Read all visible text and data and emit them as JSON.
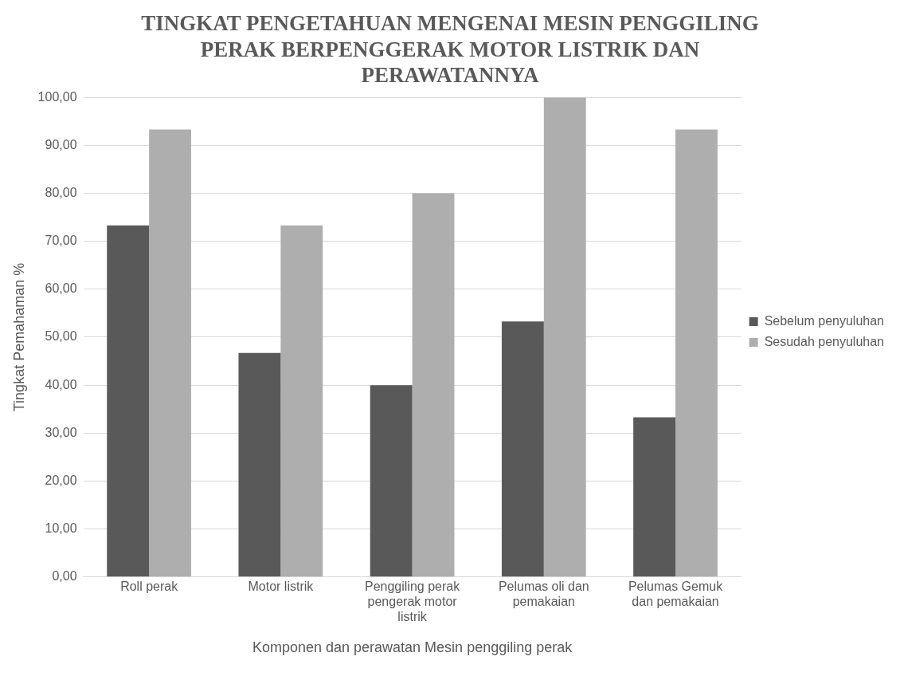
{
  "chart_data": {
    "type": "bar",
    "title": "TINGKAT PENGETAHUAN MENGENAI MESIN PENGGILING PERAK BERPENGGERAK MOTOR LISTRIK DAN PERAWATANNYA",
    "xlabel": "Komponen dan perawatan Mesin penggiling perak",
    "ylabel": "Tingkat Pemahaman %",
    "categories": [
      "Roll perak",
      "Motor listrik",
      "Penggiling perak pengerak motor listrik",
      "Pelumas oli dan pemakaian",
      "Pelumas Gemuk dan pemakaian"
    ],
    "series": [
      {
        "name": "Sebelum penyuluhan",
        "color": "#595959",
        "values": [
          73.3,
          46.7,
          40.0,
          53.3,
          33.3
        ]
      },
      {
        "name": "Sesudah penyuluhan",
        "color": "#aeaeae",
        "values": [
          93.3,
          73.3,
          80.0,
          100.0,
          93.3
        ]
      }
    ],
    "ylim": [
      0,
      100
    ],
    "yticks": [
      {
        "value": 0,
        "label": "0,00"
      },
      {
        "value": 10,
        "label": "10,00"
      },
      {
        "value": 20,
        "label": "20,00"
      },
      {
        "value": 30,
        "label": "30,00"
      },
      {
        "value": 40,
        "label": "40,00"
      },
      {
        "value": 50,
        "label": "50,00"
      },
      {
        "value": 60,
        "label": "60,00"
      },
      {
        "value": 70,
        "label": "70,00"
      },
      {
        "value": 80,
        "label": "80,00"
      },
      {
        "value": 90,
        "label": "90,00"
      },
      {
        "value": 100,
        "label": "100,00"
      }
    ],
    "grid": "y",
    "legend": "right"
  }
}
